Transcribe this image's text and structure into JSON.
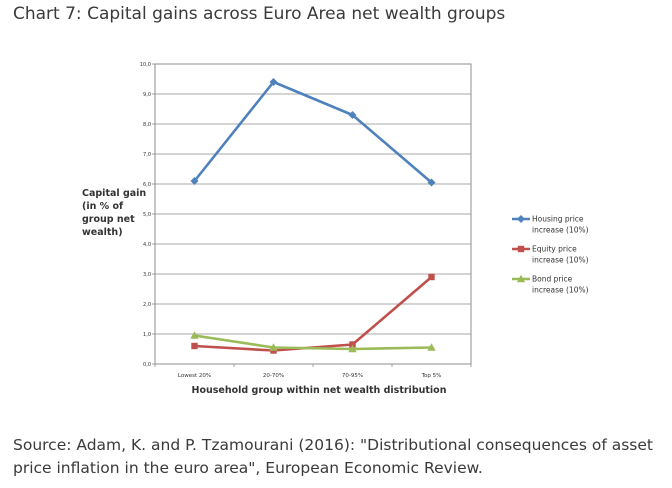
{
  "chart_data": {
    "type": "line",
    "title": "Chart 7: Capital gains across Euro Area net wealth groups",
    "ylabel_lines": [
      "Capital gain",
      "(in % of",
      "group net",
      "wealth)"
    ],
    "xlabel": "Household group within net wealth distribution",
    "categories": [
      "Lowest 20%",
      "20-70%",
      "70-95%",
      "Top 5%"
    ],
    "ylim": [
      0,
      10
    ],
    "yticks": [
      "0,0",
      "1,0",
      "2,0",
      "3,0",
      "4,0",
      "5,0",
      "6,0",
      "7,0",
      "8,0",
      "9,0",
      "10,0"
    ],
    "grid": true,
    "legend_position": "right",
    "series": [
      {
        "name_lines": [
          "Housing price",
          "increase (10%)"
        ],
        "color": "#4f81bd",
        "marker": "diamond",
        "values": [
          6.1,
          9.4,
          8.3,
          6.05
        ]
      },
      {
        "name_lines": [
          "Equity price",
          "increase (10%)"
        ],
        "color": "#c0504d",
        "marker": "square",
        "values": [
          0.6,
          0.45,
          0.65,
          2.9
        ]
      },
      {
        "name_lines": [
          "Bond price",
          "increase (10%)"
        ],
        "color": "#9bbb59",
        "marker": "triangle",
        "values": [
          0.95,
          0.55,
          0.5,
          0.55
        ]
      }
    ]
  },
  "source": "Source: Adam, K. and P. Tzamourani (2016): \"Distributional consequences of asset price inflation in the euro area\", European Economic Review."
}
